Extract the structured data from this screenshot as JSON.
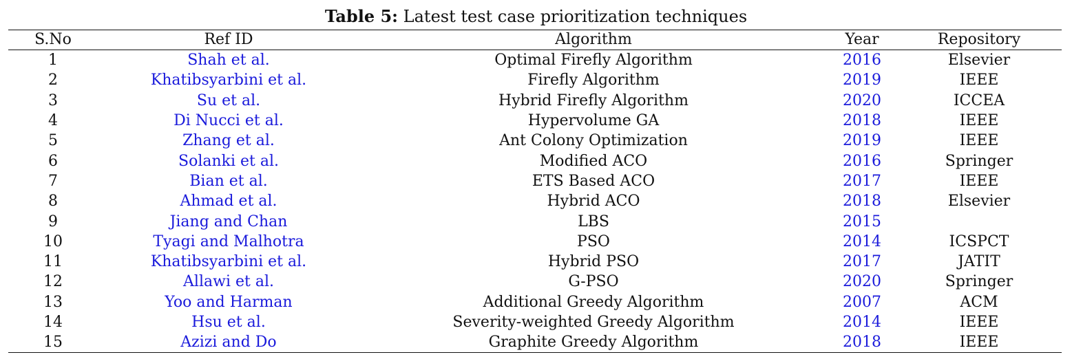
{
  "caption": {
    "label": "Table 5:",
    "text": "Latest test case prioritization techniques"
  },
  "table": {
    "headers": [
      "S.No",
      "Ref ID",
      "Algorithm",
      "Year",
      "Repository"
    ],
    "rows": [
      {
        "sno": "1",
        "ref": "Shah et al.",
        "algorithm": "Optimal Firefly Algorithm",
        "year": "2016",
        "repository": "Elsevier"
      },
      {
        "sno": "2",
        "ref": "Khatibsyarbini et al.",
        "algorithm": "Firefly Algorithm",
        "year": "2019",
        "repository": "IEEE"
      },
      {
        "sno": "3",
        "ref": "Su et al.",
        "algorithm": "Hybrid Firefly Algorithm",
        "year": "2020",
        "repository": "ICCEA"
      },
      {
        "sno": "4",
        "ref": "Di Nucci et al.",
        "algorithm": "Hypervolume GA",
        "year": "2018",
        "repository": "IEEE"
      },
      {
        "sno": "5",
        "ref": "Zhang et al.",
        "algorithm": "Ant Colony Optimization",
        "year": "2019",
        "repository": "IEEE"
      },
      {
        "sno": "6",
        "ref": "Solanki et al.",
        "algorithm": "Modified ACO",
        "year": "2016",
        "repository": "Springer"
      },
      {
        "sno": "7",
        "ref": "Bian et al.",
        "algorithm": "ETS Based ACO",
        "year": "2017",
        "repository": "IEEE"
      },
      {
        "sno": "8",
        "ref": "Ahmad et al.",
        "algorithm": "Hybrid ACO",
        "year": "2018",
        "repository": "Elsevier"
      },
      {
        "sno": "9",
        "ref": "Jiang and Chan",
        "algorithm": "LBS",
        "year": "2015",
        "repository": ""
      },
      {
        "sno": "10",
        "ref": "Tyagi and Malhotra",
        "algorithm": "PSO",
        "year": "2014",
        "repository": "ICSPCT"
      },
      {
        "sno": "11",
        "ref": "Khatibsyarbini et al.",
        "algorithm": "Hybrid PSO",
        "year": "2017",
        "repository": "JATIT"
      },
      {
        "sno": "12",
        "ref": "Allawi et al.",
        "algorithm": "G-PSO",
        "year": "2020",
        "repository": "Springer"
      },
      {
        "sno": "13",
        "ref": "Yoo and Harman",
        "algorithm": "Additional Greedy Algorithm",
        "year": "2007",
        "repository": "ACM"
      },
      {
        "sno": "14",
        "ref": "Hsu et al.",
        "algorithm": "Severity-weighted Greedy Algorithm",
        "year": "2014",
        "repository": "IEEE"
      },
      {
        "sno": "15",
        "ref": "Azizi and Do",
        "algorithm": "Graphite Greedy Algorithm",
        "year": "2018",
        "repository": "IEEE"
      }
    ]
  },
  "colors": {
    "link": "#1a1adb",
    "text": "#111111"
  }
}
